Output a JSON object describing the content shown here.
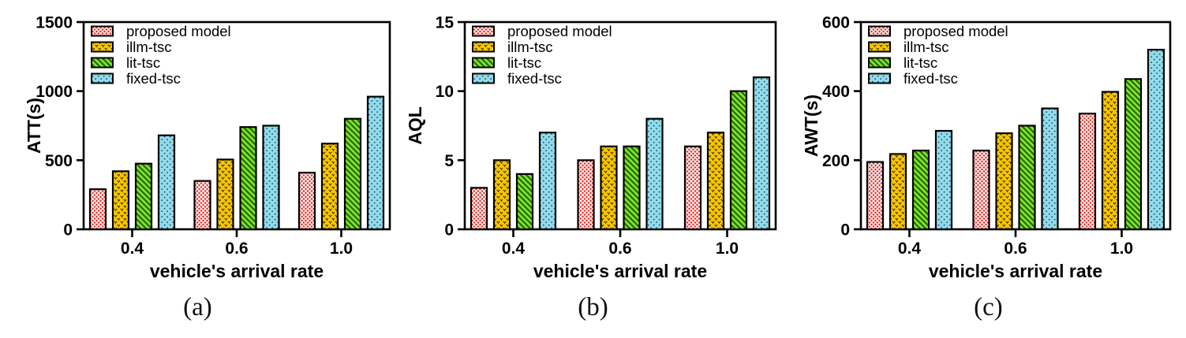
{
  "page": {
    "background": "#ffffff"
  },
  "series_styles": {
    "proposed model": {
      "color": "#e2332b",
      "hatch_color": "#ffffff",
      "pattern": "crosshatch"
    },
    "illm-tsc": {
      "color": "#f7c600",
      "hatch_color": "#473300",
      "pattern": "v-marks"
    },
    "lit-tsc": {
      "color": "#84e22c",
      "hatch_color": "#1e6b02",
      "pattern": "diagonal-backslash"
    },
    "fixed-tsc": {
      "color": "#90dbec",
      "hatch_color": "#173a42",
      "pattern": "dots"
    }
  },
  "chart_data": [
    {
      "type": "bar",
      "caption": "(a)",
      "title": "",
      "ylabel": "ATT(s)",
      "xlabel": "vehicle's arrival rate",
      "ylim": [
        0,
        1500
      ],
      "yticks": [
        0,
        500,
        1000,
        1500
      ],
      "categories": [
        "0.4",
        "0.6",
        "1.0"
      ],
      "grid": false,
      "legend_position": "top-left",
      "legend_entries": [
        "proposed model",
        "illm-tsc",
        "lit-tsc",
        "fixed-tsc"
      ],
      "series": [
        {
          "name": "proposed model",
          "values": [
            290,
            350,
            410
          ]
        },
        {
          "name": "illm-tsc",
          "values": [
            420,
            505,
            620
          ]
        },
        {
          "name": "lit-tsc",
          "values": [
            475,
            740,
            800
          ]
        },
        {
          "name": "fixed-tsc",
          "values": [
            680,
            750,
            960
          ]
        }
      ]
    },
    {
      "type": "bar",
      "caption": "(b)",
      "title": "",
      "ylabel": "AQL",
      "xlabel": "vehicle's arrival rate",
      "ylim": [
        0,
        15
      ],
      "yticks": [
        0,
        5,
        10,
        15
      ],
      "categories": [
        "0.4",
        "0.6",
        "1.0"
      ],
      "grid": false,
      "legend_position": "top-left",
      "legend_entries": [
        "proposed model",
        "illm-tsc",
        "lit-tsc",
        "fixed-tsc"
      ],
      "series": [
        {
          "name": "proposed model",
          "values": [
            3,
            5,
            6
          ]
        },
        {
          "name": "illm-tsc",
          "values": [
            5,
            6,
            7
          ]
        },
        {
          "name": "lit-tsc",
          "values": [
            4,
            6,
            10
          ]
        },
        {
          "name": "fixed-tsc",
          "values": [
            7,
            8,
            11
          ]
        }
      ]
    },
    {
      "type": "bar",
      "caption": "(c)",
      "title": "",
      "ylabel": "AWT(s)",
      "xlabel": "vehicle's arrival rate",
      "ylim": [
        0,
        600
      ],
      "yticks": [
        0,
        200,
        400,
        600
      ],
      "categories": [
        "0.4",
        "0.6",
        "1.0"
      ],
      "grid": false,
      "legend_position": "top-left",
      "legend_entries": [
        "proposed model",
        "illm-tsc",
        "lit-tsc",
        "fixed-tsc"
      ],
      "series": [
        {
          "name": "proposed model",
          "values": [
            195,
            228,
            335
          ]
        },
        {
          "name": "illm-tsc",
          "values": [
            218,
            278,
            398
          ]
        },
        {
          "name": "lit-tsc",
          "values": [
            228,
            300,
            435
          ]
        },
        {
          "name": "fixed-tsc",
          "values": [
            285,
            350,
            520
          ]
        }
      ]
    }
  ]
}
